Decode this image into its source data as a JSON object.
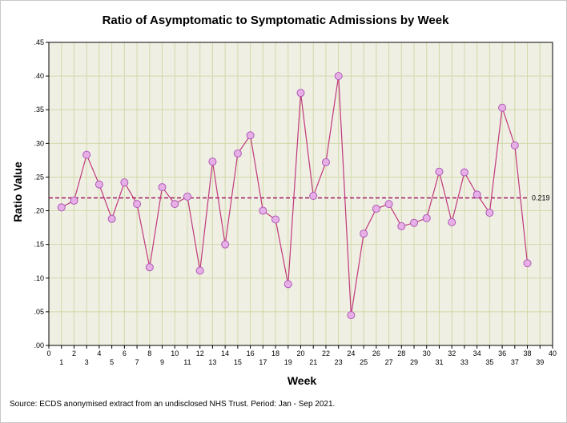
{
  "chart_data": {
    "type": "line",
    "title": "Ratio of Asymptomatic to Symptomatic Admissions by Week",
    "xlabel": "Week",
    "ylabel": "Ratio Value",
    "xlim": [
      0,
      40
    ],
    "ylim": [
      0,
      0.45
    ],
    "x_ticks_top": [
      "0",
      "2",
      "4",
      "6",
      "8",
      "10",
      "12",
      "14",
      "16",
      "18",
      "20",
      "22",
      "24",
      "26",
      "28",
      "30",
      "32",
      "34",
      "36",
      "38",
      "40"
    ],
    "x_ticks_top_values": [
      0,
      2,
      4,
      6,
      8,
      10,
      12,
      14,
      16,
      18,
      20,
      22,
      24,
      26,
      28,
      30,
      32,
      34,
      36,
      38,
      40
    ],
    "x_ticks_bottom": [
      "1",
      "3",
      "5",
      "7",
      "9",
      "11",
      "13",
      "15",
      "17",
      "19",
      "21",
      "23",
      "25",
      "27",
      "29",
      "31",
      "33",
      "35",
      "37",
      "39"
    ],
    "x_ticks_bottom_values": [
      1,
      3,
      5,
      7,
      9,
      11,
      13,
      15,
      17,
      19,
      21,
      23,
      25,
      27,
      29,
      31,
      33,
      35,
      37,
      39
    ],
    "y_ticks": [
      ".00",
      ".05",
      ".10",
      ".15",
      ".20",
      ".25",
      ".30",
      ".35",
      ".40",
      ".45"
    ],
    "y_tick_values": [
      0,
      0.05,
      0.1,
      0.15,
      0.2,
      0.25,
      0.3,
      0.35,
      0.4,
      0.45
    ],
    "grid": true,
    "series": [
      {
        "name": "Ratio",
        "x": [
          1,
          2,
          3,
          4,
          5,
          6,
          7,
          8,
          9,
          10,
          11,
          12,
          13,
          14,
          15,
          16,
          17,
          18,
          19,
          20,
          21,
          22,
          23,
          24,
          25,
          26,
          27,
          28,
          29,
          30,
          31,
          32,
          33,
          34,
          35,
          36,
          37,
          38
        ],
        "values": [
          0.205,
          0.215,
          0.283,
          0.239,
          0.188,
          0.242,
          0.21,
          0.116,
          0.235,
          0.21,
          0.221,
          0.111,
          0.273,
          0.15,
          0.285,
          0.312,
          0.2,
          0.187,
          0.091,
          0.375,
          0.222,
          0.272,
          0.4,
          0.045,
          0.166,
          0.203,
          0.21,
          0.177,
          0.182,
          0.189,
          0.258,
          0.183,
          0.257,
          0.224,
          0.197,
          0.353,
          0.297,
          0.122
        ]
      }
    ],
    "reference_line": {
      "value": 0.219,
      "label": "0.219"
    },
    "colors": {
      "line": "#c0397b",
      "marker_fill": "#e6b0e6",
      "marker_stroke": "#b05ab8",
      "ref_line": "#a0175e",
      "plot_bg": "#efefe4",
      "grid": "#d2d9a8"
    }
  },
  "source_note": "Source: ECDS anonymised extract from an undisclosed NHS Trust. Period: Jan - Sep 2021."
}
